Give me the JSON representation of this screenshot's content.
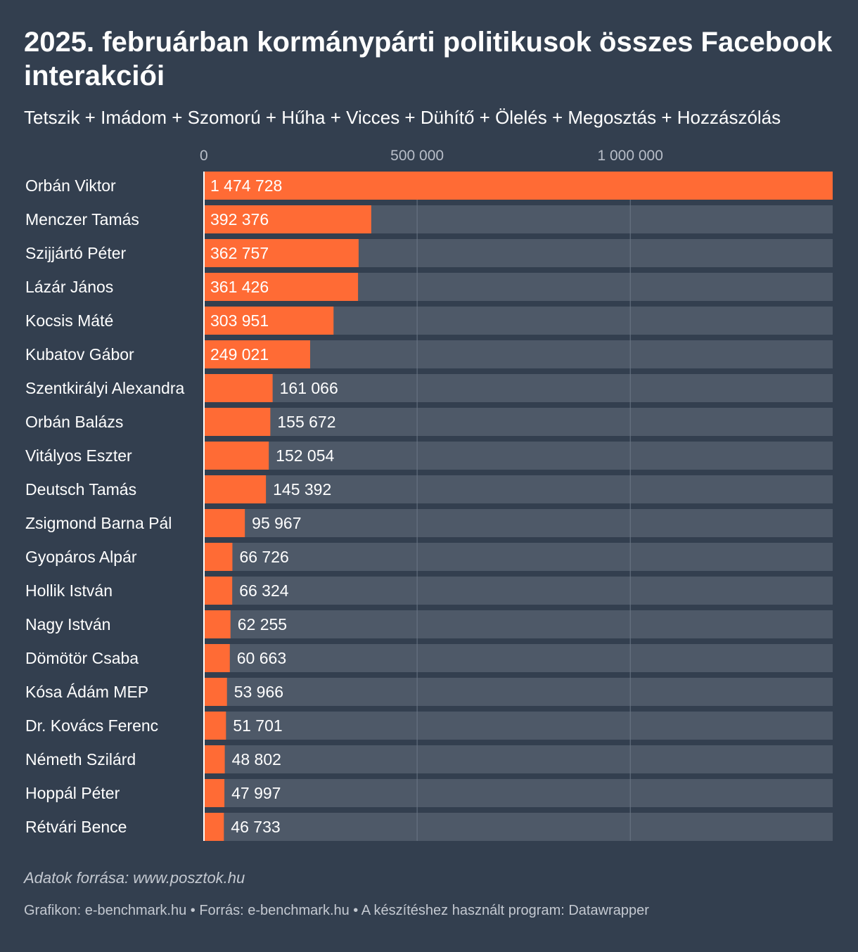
{
  "title": "2025. februárban kormánypárti politikusok összes Facebook interakciói",
  "subtitle": "Tetszik + Imádom + Szomorú + Hűha + Vicces + Dühítő + Ölelés + Megosztás + Hozzászólás",
  "source_note": "Adatok forrása: www.posztok.hu",
  "footer": "Grafikon: e-benchmark.hu • Forrás: e-benchmark.hu • A készítéshez használt program: Datawrapper",
  "colors": {
    "background": "#333f4f",
    "bar": "#ff6b35",
    "track": "#4e5968",
    "gridline": "#6b7685",
    "axis_text": "#b8bec8"
  },
  "chart_data": {
    "type": "bar",
    "orientation": "horizontal",
    "title": "2025. februárban kormánypárti politikusok összes Facebook interakciói",
    "xlabel": "",
    "ylabel": "",
    "xlim": [
      0,
      1474728
    ],
    "ticks": [
      {
        "value": 0,
        "label": "0"
      },
      {
        "value": 500000,
        "label": "500 000"
      },
      {
        "value": 1000000,
        "label": "1 000 000"
      }
    ],
    "categories": [
      "Orbán Viktor",
      "Menczer Tamás",
      "Szijjártó Péter",
      "Lázár János",
      "Kocsis Máté",
      "Kubatov Gábor",
      "Szentkirályi Alexandra",
      "Orbán Balázs",
      "Vitályos Eszter",
      "Deutsch Tamás",
      "Zsigmond Barna Pál",
      "Gyopáros Alpár",
      "Hollik István",
      "Nagy István",
      "Dömötör Csaba",
      "Kósa Ádám MEP",
      "Dr. Kovács Ferenc",
      "Németh Szilárd",
      "Hoppál Péter",
      "Rétvári Bence"
    ],
    "values": [
      1474728,
      392376,
      362757,
      361426,
      303951,
      249021,
      161066,
      155672,
      152054,
      145392,
      95967,
      66726,
      66324,
      62255,
      60663,
      53966,
      51701,
      48802,
      47997,
      46733
    ],
    "value_labels": [
      "1 474 728",
      "392 376",
      "362 757",
      "361 426",
      "303 951",
      "249 021",
      "161 066",
      "155 672",
      "152 054",
      "145 392",
      "95 967",
      "66 726",
      "66 324",
      "62 255",
      "60 663",
      "53 966",
      "51 701",
      "48 802",
      "47 997",
      "46 733"
    ]
  }
}
